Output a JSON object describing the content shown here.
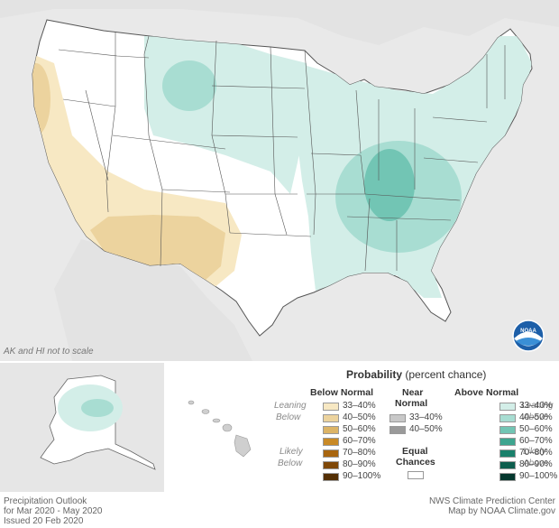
{
  "map_note": "AK and HI not to scale",
  "legend": {
    "title": "Probability",
    "title_suffix": "(percent chance)",
    "below_header": "Below Normal",
    "near_header_1": "Near",
    "near_header_2": "Normal",
    "above_header": "Above Normal",
    "leaning_left_1": "Leaning",
    "leaning_left_2": "Below",
    "likely_left_1": "Likely",
    "likely_left_2": "Below",
    "leaning_right_1": "Leaning",
    "leaning_right_2": "Above",
    "likely_right_1": "Likely",
    "likely_right_2": "Above",
    "equal_1": "Equal",
    "equal_2": "Chances",
    "below": [
      {
        "label": "33–40%",
        "color": "#f7e8c3"
      },
      {
        "label": "40–50%",
        "color": "#ecd39e"
      },
      {
        "label": "50–60%",
        "color": "#dcb466"
      },
      {
        "label": "60–70%",
        "color": "#c98a26"
      },
      {
        "label": "70–80%",
        "color": "#a8650f"
      },
      {
        "label": "80–90%",
        "color": "#7f4808"
      },
      {
        "label": "90–100%",
        "color": "#542f05"
      }
    ],
    "near": [
      {
        "label": "33–40%",
        "color": "#c8c8c8"
      },
      {
        "label": "40–50%",
        "color": "#9a9a9a"
      }
    ],
    "above": [
      {
        "label": "33–40%",
        "color": "#d3eee8"
      },
      {
        "label": "40–50%",
        "color": "#a8ddd2"
      },
      {
        "label": "50–60%",
        "color": "#72c5b4"
      },
      {
        "label": "60–70%",
        "color": "#3ea58f"
      },
      {
        "label": "70–80%",
        "color": "#19806b"
      },
      {
        "label": "80–90%",
        "color": "#0d5e4e"
      },
      {
        "label": "90–100%",
        "color": "#05382e"
      }
    ],
    "equal_color": "#ffffff"
  },
  "footer": {
    "left_1": "Precipitation Outlook",
    "left_2": "for Mar 2020 - May 2020",
    "left_3": "Issued 20 Feb 2020",
    "right_1": "NWS Climate Prediction Center",
    "right_2": "Map by NOAA Climate.gov"
  },
  "logo": {
    "text": "NOAA"
  }
}
